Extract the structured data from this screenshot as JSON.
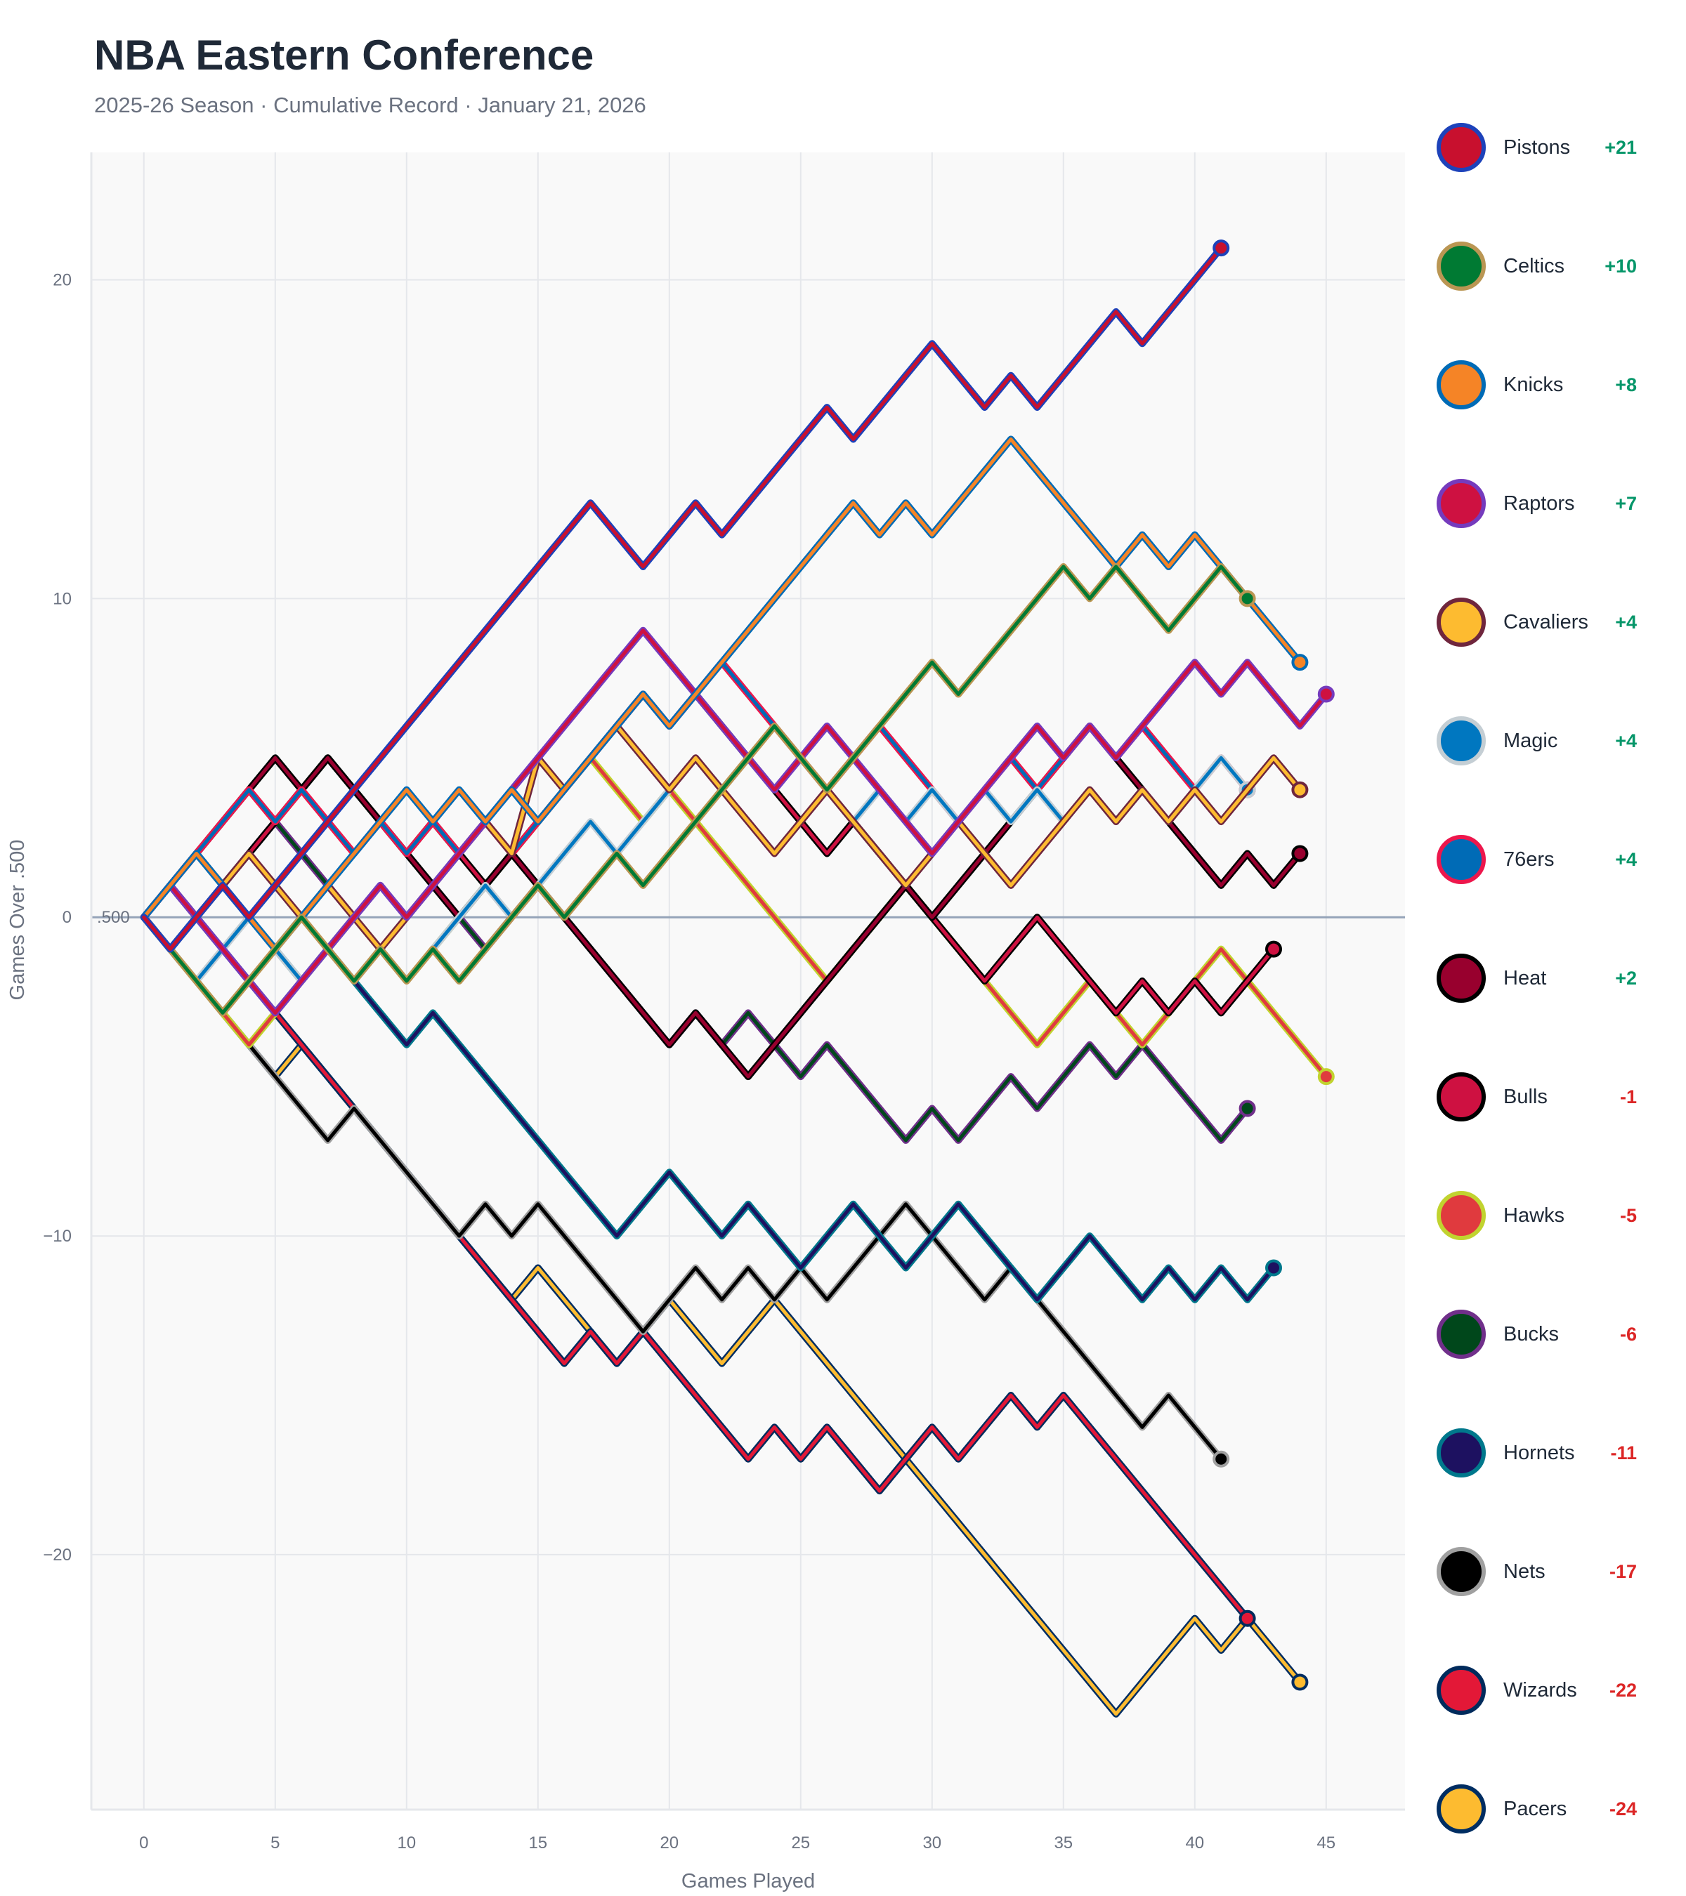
{
  "header": {
    "title": "NBA Eastern Conference",
    "subtitle": "2025-26 Season · Cumulative Record · January 21, 2026"
  },
  "chart_data": {
    "type": "line",
    "title": "NBA Eastern Conference",
    "subtitle": "2025-26 Season · Cumulative Record · January 21, 2026",
    "xlabel": "Games Played",
    "ylabel": "Games Over .500",
    "xlim": [
      -2,
      48
    ],
    "ylim": [
      -28,
      24
    ],
    "x_ticks": [
      0,
      5,
      10,
      15,
      20,
      25,
      30,
      35,
      40,
      45
    ],
    "y_ticks": [
      -20,
      -10,
      0,
      10,
      20
    ],
    "y_tick_labels": [
      "−20",
      "−10",
      "0",
      "10",
      "20"
    ],
    "zero_line_label": ".500",
    "grid": true,
    "legend_position": "right",
    "series": [
      {
        "name": "Pistons",
        "final": "+21",
        "color": "#C8102E",
        "outline": "#1D42BA",
        "values": [
          0,
          -1,
          0,
          1,
          0,
          1,
          2,
          3,
          4,
          5,
          6,
          7,
          8,
          9,
          10,
          11,
          12,
          13,
          12,
          11,
          12,
          13,
          12,
          13,
          14,
          15,
          16,
          15,
          16,
          17,
          18,
          17,
          16,
          17,
          16,
          17,
          18,
          19,
          18,
          19,
          20,
          21
        ]
      },
      {
        "name": "Celtics",
        "final": "+10",
        "color": "#007A33",
        "outline": "#BA9653",
        "values": [
          0,
          -1,
          -2,
          -3,
          -2,
          -1,
          0,
          -1,
          -2,
          -1,
          -2,
          -1,
          -2,
          -1,
          0,
          1,
          0,
          1,
          2,
          1,
          2,
          3,
          4,
          5,
          6,
          5,
          4,
          5,
          6,
          7,
          8,
          7,
          8,
          9,
          10,
          11,
          10,
          11,
          10,
          9,
          10,
          11,
          10
        ]
      },
      {
        "name": "Knicks",
        "final": "+8",
        "color": "#F58426",
        "outline": "#006BB6",
        "values": [
          0,
          1,
          2,
          1,
          0,
          -1,
          0,
          1,
          2,
          3,
          4,
          3,
          4,
          3,
          4,
          3,
          4,
          5,
          6,
          7,
          6,
          7,
          8,
          9,
          10,
          11,
          12,
          13,
          12,
          13,
          12,
          13,
          14,
          15,
          14,
          13,
          12,
          11,
          12,
          11,
          12,
          11,
          10,
          9,
          8
        ]
      },
      {
        "name": "Raptors",
        "final": "+7",
        "color": "#CE1141",
        "outline": "#753BBD",
        "values": [
          0,
          1,
          0,
          -1,
          -2,
          -3,
          -2,
          -1,
          0,
          1,
          0,
          1,
          2,
          3,
          4,
          5,
          6,
          7,
          8,
          9,
          8,
          7,
          6,
          5,
          4,
          5,
          6,
          5,
          4,
          3,
          2,
          3,
          4,
          5,
          6,
          5,
          6,
          5,
          6,
          7,
          8,
          7,
          8,
          7,
          6,
          7
        ]
      },
      {
        "name": "Cavaliers",
        "final": "+4",
        "color": "#FDBB30",
        "outline": "#6F263D",
        "values": [
          0,
          1,
          0,
          1,
          2,
          1,
          0,
          1,
          0,
          -1,
          0,
          1,
          2,
          3,
          2,
          5,
          4,
          5,
          6,
          5,
          4,
          5,
          4,
          3,
          2,
          3,
          4,
          3,
          2,
          1,
          2,
          3,
          2,
          1,
          2,
          3,
          4,
          3,
          4,
          3,
          4,
          3,
          4,
          5,
          4
        ]
      },
      {
        "name": "Magic",
        "final": "+4",
        "color": "#0077C0",
        "outline": "#C4CED4",
        "values": [
          0,
          -1,
          -2,
          -1,
          0,
          -1,
          -2,
          -1,
          -2,
          -1,
          -2,
          -1,
          0,
          1,
          0,
          1,
          2,
          3,
          2,
          3,
          4,
          5,
          4,
          5,
          4,
          5,
          4,
          3,
          4,
          3,
          4,
          3,
          4,
          3,
          4,
          3,
          4,
          3,
          4,
          3,
          4,
          5,
          4
        ]
      },
      {
        "name": "76ers",
        "final": "+4",
        "color": "#006BB6",
        "outline": "#ED174C",
        "values": [
          0,
          1,
          2,
          3,
          4,
          3,
          4,
          3,
          2,
          3,
          2,
          3,
          2,
          3,
          2,
          3,
          4,
          5,
          6,
          7,
          6,
          7,
          8,
          7,
          6,
          5,
          4,
          5,
          6,
          5,
          4,
          3,
          4,
          5,
          4,
          5,
          6,
          5,
          6,
          5,
          4,
          5,
          4
        ]
      },
      {
        "name": "Heat",
        "final": "+2",
        "color": "#98002E",
        "outline": "#000000",
        "values": [
          0,
          1,
          2,
          3,
          4,
          5,
          4,
          5,
          4,
          3,
          2,
          1,
          0,
          1,
          2,
          1,
          0,
          -1,
          -2,
          -3,
          -4,
          -3,
          -4,
          -5,
          -4,
          -3,
          -2,
          -1,
          0,
          1,
          0,
          1,
          2,
          3,
          4,
          5,
          6,
          5,
          4,
          3,
          2,
          1,
          2,
          1,
          2
        ]
      },
      {
        "name": "Bulls",
        "final": "-1",
        "color": "#CE1141",
        "outline": "#000000",
        "values": [
          0,
          1,
          2,
          1,
          2,
          3,
          4,
          5,
          4,
          3,
          2,
          3,
          2,
          1,
          2,
          3,
          4,
          5,
          6,
          7,
          6,
          7,
          6,
          5,
          4,
          3,
          2,
          3,
          2,
          1,
          0,
          -1,
          -2,
          -1,
          0,
          -1,
          -2,
          -3,
          -2,
          -3,
          -2,
          -3,
          -2,
          -1
        ]
      },
      {
        "name": "Hawks",
        "final": "-5",
        "color": "#E03A3E",
        "outline": "#C1D32F",
        "values": [
          0,
          -1,
          -2,
          -3,
          -4,
          -3,
          -2,
          -1,
          0,
          -1,
          -2,
          -1,
          0,
          1,
          2,
          3,
          4,
          5,
          4,
          3,
          4,
          3,
          2,
          1,
          0,
          -1,
          -2,
          -1,
          0,
          1,
          0,
          -1,
          -2,
          -3,
          -4,
          -3,
          -2,
          -3,
          -4,
          -3,
          -2,
          -1,
          -2,
          -3,
          -4,
          -5
        ]
      },
      {
        "name": "Bucks",
        "final": "-6",
        "color": "#00471B",
        "outline": "#702F8A",
        "values": [
          0,
          -1,
          0,
          1,
          2,
          3,
          2,
          1,
          0,
          1,
          0,
          1,
          0,
          -1,
          0,
          1,
          0,
          -1,
          -2,
          -3,
          -4,
          -3,
          -4,
          -3,
          -4,
          -5,
          -4,
          -5,
          -6,
          -7,
          -6,
          -7,
          -6,
          -5,
          -6,
          -5,
          -4,
          -5,
          -4,
          -5,
          -6,
          -7,
          -6
        ]
      },
      {
        "name": "Hornets",
        "final": "-11",
        "color": "#1D1160",
        "outline": "#00788C",
        "values": [
          0,
          -1,
          0,
          1,
          0,
          -1,
          -2,
          -1,
          -2,
          -3,
          -4,
          -3,
          -4,
          -5,
          -6,
          -7,
          -8,
          -9,
          -10,
          -9,
          -8,
          -9,
          -10,
          -9,
          -10,
          -11,
          -10,
          -9,
          -10,
          -11,
          -10,
          -9,
          -10,
          -11,
          -12,
          -11,
          -10,
          -11,
          -12,
          -11,
          -12,
          -11,
          -12,
          -11
        ]
      },
      {
        "name": "Nets",
        "final": "-17",
        "color": "#000000",
        "outline": "#A0A0A0",
        "values": [
          0,
          -1,
          -2,
          -3,
          -4,
          -5,
          -6,
          -7,
          -6,
          -7,
          -8,
          -9,
          -10,
          -9,
          -10,
          -9,
          -10,
          -11,
          -12,
          -13,
          -12,
          -11,
          -12,
          -11,
          -12,
          -11,
          -12,
          -11,
          -10,
          -9,
          -10,
          -11,
          -12,
          -11,
          -12,
          -13,
          -14,
          -15,
          -16,
          -15,
          -16,
          -17
        ]
      },
      {
        "name": "Wizards",
        "final": "-22",
        "color": "#E31837",
        "outline": "#002B5C",
        "values": [
          0,
          1,
          0,
          -1,
          -2,
          -3,
          -4,
          -5,
          -6,
          -7,
          -8,
          -9,
          -10,
          -11,
          -12,
          -13,
          -14,
          -13,
          -14,
          -13,
          -14,
          -15,
          -16,
          -17,
          -16,
          -17,
          -16,
          -17,
          -18,
          -17,
          -16,
          -17,
          -16,
          -15,
          -16,
          -15,
          -16,
          -17,
          -18,
          -19,
          -20,
          -21,
          -22
        ]
      },
      {
        "name": "Pacers",
        "final": "-24",
        "color": "#FDBB30",
        "outline": "#002D62",
        "values": [
          0,
          -1,
          -2,
          -3,
          -4,
          -5,
          -4,
          -5,
          -6,
          -7,
          -8,
          -9,
          -10,
          -11,
          -12,
          -11,
          -12,
          -13,
          -14,
          -13,
          -12,
          -13,
          -14,
          -13,
          -12,
          -13,
          -14,
          -15,
          -16,
          -17,
          -18,
          -19,
          -20,
          -21,
          -22,
          -23,
          -24,
          -25,
          -24,
          -23,
          -22,
          -23,
          -22,
          -23,
          -24
        ]
      }
    ]
  },
  "legend": {
    "items": [
      {
        "name": "Pistons",
        "value": "+21",
        "sign": "pos"
      },
      {
        "name": "Celtics",
        "value": "+10",
        "sign": "pos"
      },
      {
        "name": "Knicks",
        "value": "+8",
        "sign": "pos"
      },
      {
        "name": "Raptors",
        "value": "+7",
        "sign": "pos"
      },
      {
        "name": "Cavaliers",
        "value": "+4",
        "sign": "pos"
      },
      {
        "name": "Magic",
        "value": "+4",
        "sign": "pos"
      },
      {
        "name": "76ers",
        "value": "+4",
        "sign": "pos"
      },
      {
        "name": "Heat",
        "value": "+2",
        "sign": "pos"
      },
      {
        "name": "Bulls",
        "value": "-1",
        "sign": "neg"
      },
      {
        "name": "Hawks",
        "value": "-5",
        "sign": "neg"
      },
      {
        "name": "Bucks",
        "value": "-6",
        "sign": "neg"
      },
      {
        "name": "Hornets",
        "value": "-11",
        "sign": "neg"
      },
      {
        "name": "Nets",
        "value": "-17",
        "sign": "neg"
      },
      {
        "name": "Wizards",
        "value": "-22",
        "sign": "neg"
      },
      {
        "name": "Pacers",
        "value": "-24",
        "sign": "neg"
      }
    ],
    "positive_color": "#059669",
    "negative_color": "#dc2626"
  }
}
